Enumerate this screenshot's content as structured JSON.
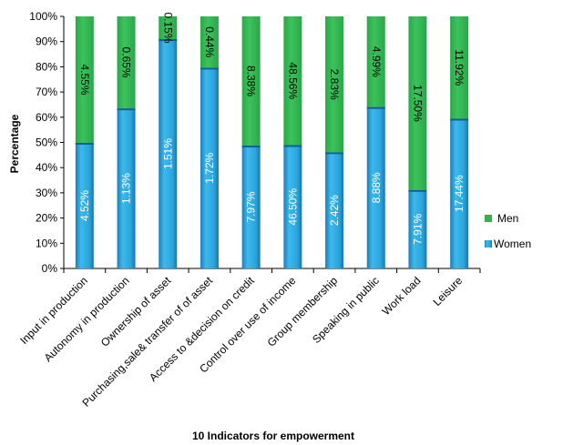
{
  "chart_data": {
    "type": "bar",
    "stacked": true,
    "percent_stacked": true,
    "categories": [
      "Input in production",
      "Autonomy in production",
      "Ownership of asset",
      "Purchasing,sale& transfer of of asset",
      "Access to &decision on credit",
      "Control over use of income",
      "Group membership",
      "Speaking in public",
      "Work load",
      "Leisure"
    ],
    "series": [
      {
        "name": "Women",
        "values": [
          4.52,
          1.13,
          1.51,
          1.72,
          7.97,
          46.5,
          2.42,
          8.88,
          7.91,
          17.44
        ],
        "labels": [
          "4.52%",
          "1.13%",
          "1.51%",
          "1.72%",
          "7.97%",
          "46.50%",
          "2.42%",
          "8.88%",
          "7.91%",
          "17.44%"
        ],
        "color": "#29a8e0"
      },
      {
        "name": "Men",
        "values": [
          4.55,
          0.65,
          0.15,
          0.44,
          8.38,
          48.56,
          2.83,
          4.99,
          17.5,
          11.92
        ],
        "labels": [
          "4.55%",
          "0.65%",
          "0.15%",
          "0.44%",
          "8.38%",
          "48.56%",
          "2.83%",
          "4.99%",
          "17.50%",
          "11.92%"
        ],
        "color": "#2db34a"
      }
    ],
    "xlabel": "10 Indicators for empowerment",
    "ylabel": "Percentage",
    "ylim": [
      0,
      100
    ],
    "yticks": [
      "0%",
      "10%",
      "20%",
      "30%",
      "40%",
      "50%",
      "60%",
      "70%",
      "80%",
      "90%",
      "100%"
    ],
    "grid": false,
    "legend_position": "right"
  }
}
